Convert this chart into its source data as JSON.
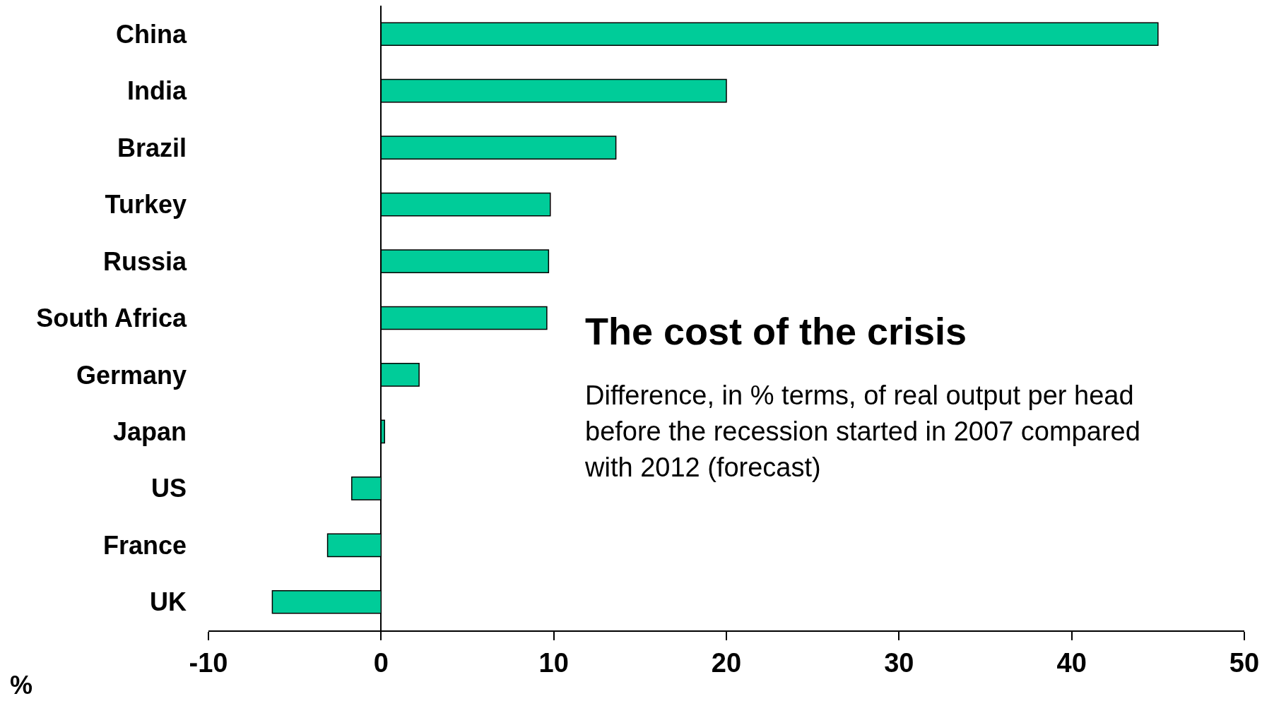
{
  "chart_data": {
    "type": "bar",
    "orientation": "horizontal",
    "title": "The cost of the crisis",
    "subtitle": "Difference, in % terms, of real output per head before the recession started in 2007 compared with 2012 (forecast)",
    "xlabel": "%",
    "categories": [
      "China",
      "India",
      "Brazil",
      "Turkey",
      "Russia",
      "South Africa",
      "Germany",
      "Japan",
      "US",
      "France",
      "UK"
    ],
    "values": [
      45.0,
      20.0,
      13.6,
      9.8,
      9.7,
      9.6,
      2.2,
      0.2,
      -1.7,
      -3.1,
      -6.3
    ],
    "color": "#00cc99",
    "xlim": [
      -10,
      50
    ],
    "xticks": [
      -10,
      0,
      10,
      20,
      30,
      40,
      50
    ]
  }
}
